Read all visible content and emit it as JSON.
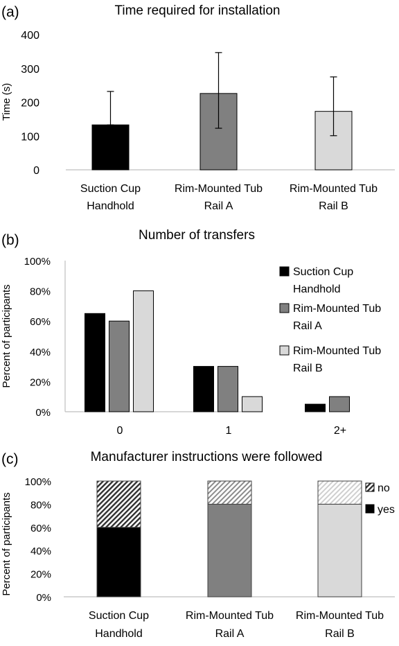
{
  "chart_data": [
    {
      "panel": "(a)",
      "type": "bar",
      "title": "Time required for installation",
      "ylabel": "Time (s)",
      "xlabel": "",
      "ylim": [
        0,
        400
      ],
      "yticks": [
        0,
        100,
        200,
        300,
        400
      ],
      "categories": [
        [
          "Suction Cup",
          "Handhold"
        ],
        [
          "Rim-Mounted Tub",
          "Rail A"
        ],
        [
          "Rim-Mounted Tub",
          "Rail B"
        ]
      ],
      "values": [
        133,
        226,
        173
      ],
      "error_low": [
        133,
        123,
        101
      ],
      "error_high": [
        232,
        347,
        275
      ],
      "colors": [
        "#000000",
        "#808080",
        "#d9d9d9"
      ],
      "grid": false,
      "legend": "none"
    },
    {
      "panel": "(b)",
      "type": "bar",
      "title": "Number of transfers",
      "ylabel": "Percent of participants",
      "xlabel": "",
      "ylim": [
        0,
        100
      ],
      "yticks": [
        "0%",
        "20%",
        "40%",
        "60%",
        "80%",
        "100%"
      ],
      "categories": [
        "0",
        "1",
        "2+"
      ],
      "series": [
        {
          "name": [
            "Suction Cup",
            "Handhold"
          ],
          "values": [
            65,
            30,
            5
          ],
          "color": "#000000"
        },
        {
          "name": [
            "Rim-Mounted Tub",
            "Rail A"
          ],
          "values": [
            60,
            30,
            10
          ],
          "color": "#808080"
        },
        {
          "name": [
            "Rim-Mounted Tub",
            "Rail B"
          ],
          "values": [
            80,
            10,
            0
          ],
          "color": "#d9d9d9"
        }
      ],
      "grid": false,
      "legend": "right"
    },
    {
      "panel": "(c)",
      "type": "bar",
      "stacked": true,
      "title": "Manufacturer instructions were followed",
      "ylabel": "Percent of participants",
      "xlabel": "",
      "ylim": [
        0,
        100
      ],
      "yticks": [
        "0%",
        "20%",
        "40%",
        "60%",
        "80%",
        "100%"
      ],
      "categories": [
        [
          "Suction Cup",
          "Handhold"
        ],
        [
          "Rim-Mounted Tub",
          "Rail A"
        ],
        [
          "Rim-Mounted Tub",
          "Rail B"
        ]
      ],
      "series": [
        {
          "name": "yes",
          "values": [
            60,
            80,
            80
          ]
        },
        {
          "name": "no",
          "values": [
            40,
            20,
            20
          ]
        }
      ],
      "bar_colors": [
        "#000000",
        "#808080",
        "#d9d9d9"
      ],
      "no_pattern": "diagonal-hatch",
      "grid": false,
      "legend": "right"
    }
  ]
}
